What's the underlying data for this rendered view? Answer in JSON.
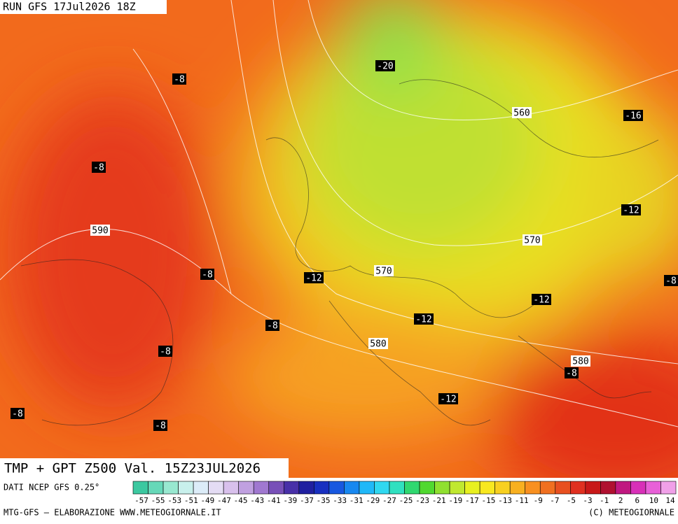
{
  "header": "RUN GFS 17Jul2026 18Z",
  "map_labels": [
    "-8",
    "-20",
    "560",
    "-16",
    "-8",
    "-12",
    "590",
    "570",
    "-8",
    "-12",
    "570",
    "-8",
    "-12",
    "-12",
    "580",
    "-8",
    "580",
    "-8",
    "-12",
    "-8",
    "-8",
    "-8"
  ],
  "title": "TMP + GPT Z500 Val. 15Z23JUL2026",
  "source": "DATI NCEP GFS 0.25°",
  "colorbar": {
    "colors": [
      "#3cc8a0",
      "#66d8b8",
      "#98e8d0",
      "#c8f0ec",
      "#dcecf8",
      "#e4dcf4",
      "#d8c0ec",
      "#c0a0e0",
      "#a078d0",
      "#7850b8",
      "#4830a8",
      "#2020a0",
      "#1830c0",
      "#1858e0",
      "#1888f0",
      "#20b8f8",
      "#30d8f0",
      "#30e0c0",
      "#30d870",
      "#50d830",
      "#90e030",
      "#c0e830",
      "#e8f020",
      "#f8e820",
      "#f8d020",
      "#f8b020",
      "#f89020",
      "#f07020",
      "#e85020",
      "#e03020",
      "#c81818",
      "#b01030",
      "#c01880",
      "#d830b8",
      "#e860d8",
      "#f0a0e8"
    ],
    "labels": [
      "-57",
      "-55",
      "-53",
      "-51",
      "-49",
      "-47",
      "-45",
      "-43",
      "-41",
      "-39",
      "-37",
      "-35",
      "-33",
      "-31",
      "-29",
      "-27",
      "-25",
      "-23",
      "-21",
      "-19",
      "-17",
      "-15",
      "-13",
      "-11",
      "-9",
      "-7",
      "-5",
      "-3",
      "-1",
      "2",
      "6",
      "10",
      "14"
    ]
  },
  "footer_left": "MTG-GFS — ELABORAZIONE WWW.METEOGIORNALE.IT",
  "footer_right": "(C) METEOGIORNALE"
}
